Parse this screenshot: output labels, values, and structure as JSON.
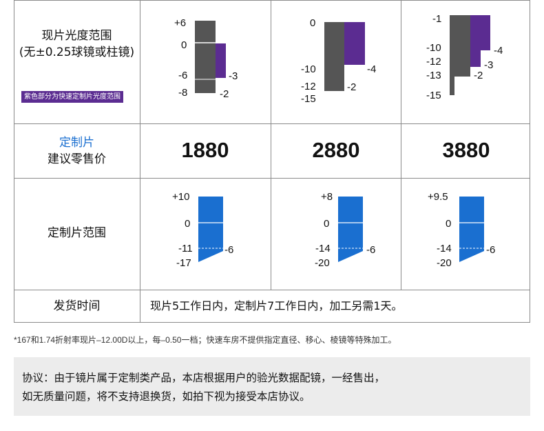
{
  "rows": {
    "stock_range": {
      "label_line1": "现片光度范围",
      "label_line2": "(无±0.25球镜或柱镜)",
      "badge": "紫色部分为快速定制片光度范围",
      "charts": [
        {
          "labels_left": [
            "+6",
            "0",
            "-6",
            "-8"
          ],
          "labels_right": [
            "-3",
            "-2"
          ]
        },
        {
          "labels_left": [
            "0",
            "-10",
            "-12",
            "-15"
          ],
          "labels_right": [
            "-4",
            "-2"
          ]
        },
        {
          "labels_left": [
            "-1",
            "-10",
            "-12",
            "-13",
            "-15"
          ],
          "labels_right": [
            "-4",
            "-3",
            "-2"
          ]
        }
      ]
    },
    "price": {
      "label_line1": "定制片",
      "label_line2": "建议零售价",
      "values": [
        "1880",
        "2880",
        "3880"
      ]
    },
    "custom_range": {
      "label": "定制片范围",
      "charts": [
        {
          "labels_left": [
            "+10",
            "0",
            "-11",
            "-17"
          ],
          "label_right": "-6"
        },
        {
          "labels_left": [
            "+8",
            "0",
            "-14",
            "-20"
          ],
          "label_right": "-6"
        },
        {
          "labels_left": [
            "+9.5",
            "0",
            "-14",
            "-20"
          ],
          "label_right": "-6"
        }
      ]
    },
    "delivery": {
      "label": "发货时间",
      "text": "现片5工作日内，定制片7工作日内，加工另需1天。"
    }
  },
  "footnote": "*167和1.74折射率现片–12.00D以上，每–0.50一档；快速车房不提供指定直径、移心、棱镜等特殊加工。",
  "notice": {
    "line1": "协议：由于镜片属于定制类产品，本店根据用户的验光数据配镜，一经售出，",
    "line2": "如无质量问题，将不支持退换货，如拍下视为接受本店协议。"
  },
  "colors": {
    "gray_bar": "#555555",
    "purple_bar": "#5b2c91",
    "blue_bar": "#1a6fd0",
    "grid_line": "#8a8a8a",
    "notice_bg": "#ececec"
  }
}
